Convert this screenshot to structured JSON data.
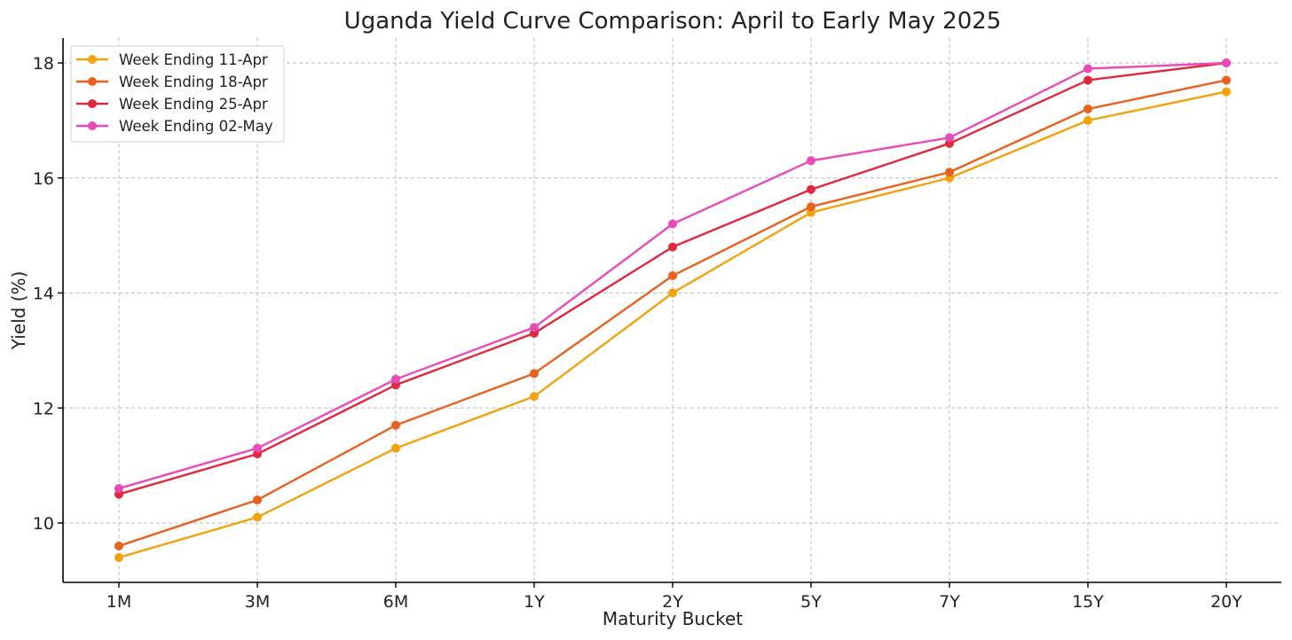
{
  "chart_data": {
    "type": "line",
    "title": "Uganda Yield Curve Comparison: April to Early May 2025",
    "xlabel": "Maturity Bucket",
    "ylabel": "Yield (%)",
    "categories": [
      "1M",
      "3M",
      "6M",
      "1Y",
      "2Y",
      "5Y",
      "7Y",
      "15Y",
      "20Y"
    ],
    "ylim": [
      9.0,
      18.4
    ],
    "yticks": [
      10,
      12,
      14,
      16,
      18
    ],
    "grid": true,
    "legend_position": "top-left",
    "series": [
      {
        "name": "Week Ending 11-Apr",
        "color": "#f2a20c",
        "values": [
          9.4,
          10.1,
          11.3,
          12.2,
          14.0,
          15.4,
          16.0,
          17.0,
          17.5
        ]
      },
      {
        "name": "Week Ending 18-Apr",
        "color": "#e8611e",
        "values": [
          9.6,
          10.4,
          11.7,
          12.6,
          14.3,
          15.5,
          16.1,
          17.2,
          17.7
        ]
      },
      {
        "name": "Week Ending 25-Apr",
        "color": "#e0283f",
        "values": [
          10.5,
          11.2,
          12.4,
          13.3,
          14.8,
          15.8,
          16.6,
          17.7,
          18.0
        ]
      },
      {
        "name": "Week Ending 02-May",
        "color": "#ea4ab8",
        "values": [
          10.6,
          11.3,
          12.5,
          13.4,
          15.2,
          16.3,
          16.7,
          17.9,
          18.0
        ]
      }
    ]
  }
}
